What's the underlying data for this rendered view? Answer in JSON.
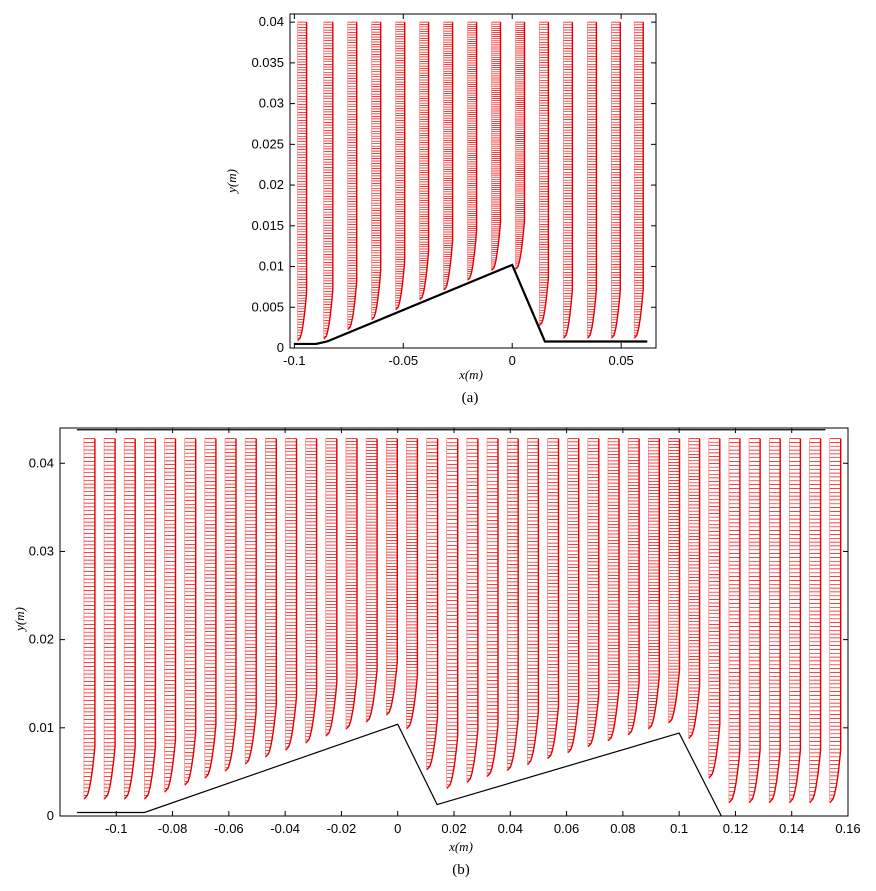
{
  "chart_data": [
    {
      "type": "scatter",
      "plot_kind": "velocity-vector profiles",
      "caption": "(a)",
      "xlabel": "x(m)",
      "ylabel": "y(m)",
      "xlim": [
        -0.102,
        0.066
      ],
      "ylim": [
        0,
        0.041
      ],
      "xticks": [
        "-0.1",
        "-0.05",
        "0",
        "0.05"
      ],
      "xtick_values": [
        -0.1,
        -0.05,
        0,
        0.05
      ],
      "yticks": [
        "0",
        "0.005",
        "0.01",
        "0.015",
        "0.02",
        "0.025",
        "0.03",
        "0.035",
        "0.04"
      ],
      "ytick_values": [
        0,
        0.005,
        0.01,
        0.015,
        0.02,
        0.025,
        0.03,
        0.035,
        0.04
      ],
      "vector_color": "#ff0000",
      "wall_color": "#000000",
      "wall_profile": {
        "x": [
          -0.1,
          -0.09,
          -0.085,
          0,
          0.015,
          0.062
        ],
        "y": [
          0.0005,
          0.0005,
          0.0008,
          0.0102,
          0.0008,
          0.0008
        ]
      },
      "profile_x": [
        -0.0985,
        -0.0865,
        -0.0755,
        -0.0645,
        -0.0535,
        -0.0425,
        -0.0315,
        -0.0205,
        -0.0095,
        0.0015,
        0.0125,
        0.0235,
        0.0345,
        0.0455,
        0.056
      ],
      "profile_y_top": 0.04
    },
    {
      "type": "scatter",
      "plot_kind": "velocity-vector profiles",
      "caption": "(b)",
      "xlabel": "x(m)",
      "ylabel": "y(m)",
      "xlim": [
        -0.12,
        0.16
      ],
      "ylim": [
        0,
        0.044
      ],
      "xticks": [
        "-0.1",
        "-0.08",
        "-0.06",
        "-0.04",
        "-0.02",
        "0",
        "0.02",
        "0.04",
        "0.06",
        "0.08",
        "0.1",
        "0.12",
        "0.14",
        "0.16"
      ],
      "xtick_values": [
        -0.1,
        -0.08,
        -0.06,
        -0.04,
        -0.02,
        0,
        0.02,
        0.04,
        0.06,
        0.08,
        0.1,
        0.12,
        0.14,
        0.16
      ],
      "yticks": [
        "0",
        "0.01",
        "0.02",
        "0.03",
        "0.04"
      ],
      "ytick_values": [
        0,
        0.01,
        0.02,
        0.03,
        0.04
      ],
      "vector_color": "#ff0000",
      "wall_color": "#000000",
      "wall_profile": {
        "x": [
          -0.114,
          -0.09,
          0,
          0.014,
          0.1,
          0.115
        ],
        "y": [
          0.0004,
          0.0004,
          0.0104,
          0.0013,
          0.0094,
          0
        ]
      },
      "top_wall": {
        "x": [
          -0.114,
          0.152
        ],
        "y": 0.0438
      },
      "profile_count": 38,
      "profile_x_start": -0.1115,
      "profile_x_end": 0.1535,
      "profile_y_top": 0.0428
    }
  ]
}
